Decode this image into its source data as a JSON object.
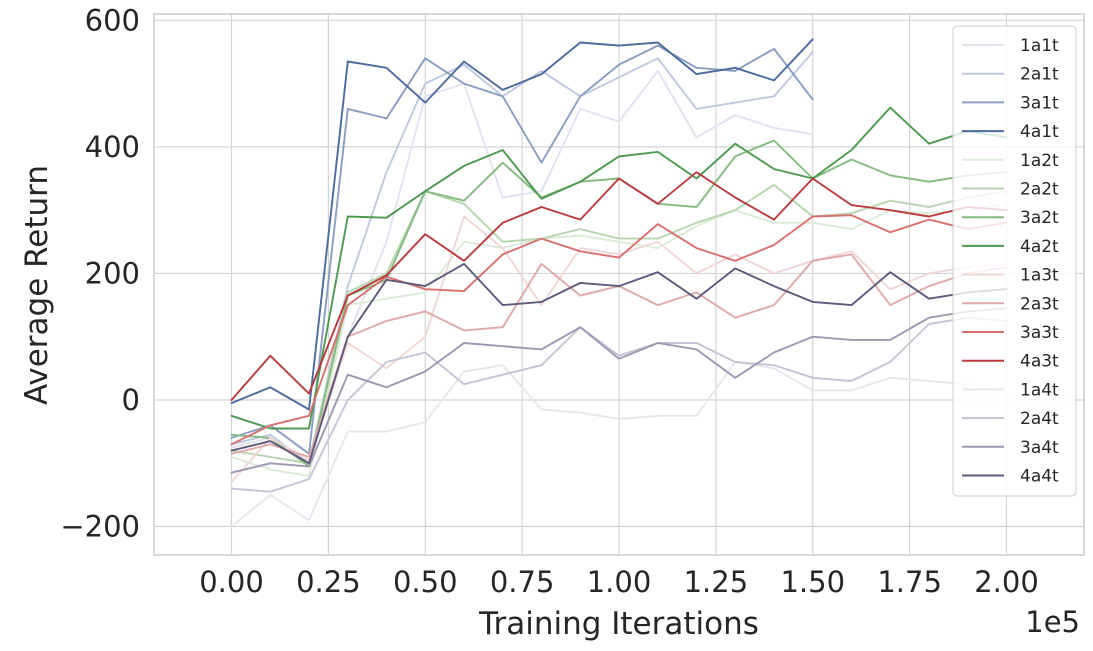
{
  "chart_data": {
    "type": "line",
    "title": "",
    "xlabel": "Training Iterations",
    "ylabel": "Average Return",
    "x_offset_text": "1e5",
    "xlim": [
      -0.2,
      2.2
    ],
    "ylim": [
      -245,
      610
    ],
    "x_ticks": [
      0.0,
      0.25,
      0.5,
      0.75,
      1.0,
      1.25,
      1.5,
      1.75,
      2.0
    ],
    "x_tick_labels": [
      "0.00",
      "0.25",
      "0.50",
      "0.75",
      "1.00",
      "1.25",
      "1.50",
      "1.75",
      "2.00"
    ],
    "y_ticks": [
      -200,
      0,
      200,
      400,
      600
    ],
    "y_tick_labels": [
      "−200",
      "0",
      "200",
      "400",
      "600"
    ],
    "grid": true,
    "legend_position": "upper-right",
    "series": [
      {
        "name": "1a1t",
        "color": "#dfe3ef",
        "x": [
          0,
          0.1,
          0.2,
          0.3,
          0.4,
          0.5,
          0.6,
          0.7,
          0.8,
          0.9,
          1.0,
          1.1,
          1.2,
          1.3,
          1.4,
          1.5
        ],
        "values": [
          -75,
          -60,
          -95,
          100,
          250,
          480,
          500,
          320,
          330,
          460,
          440,
          520,
          415,
          450,
          430,
          420
        ]
      },
      {
        "name": "2a1t",
        "color": "#bfc8de",
        "x": [
          0,
          0.1,
          0.2,
          0.3,
          0.4,
          0.5,
          0.6,
          0.7,
          0.8,
          0.9,
          1.0,
          1.1,
          1.2,
          1.3,
          1.4,
          1.5
        ],
        "values": [
          -70,
          -55,
          -100,
          180,
          360,
          500,
          530,
          480,
          520,
          480,
          510,
          540,
          460,
          470,
          480,
          550
        ]
      },
      {
        "name": "3a1t",
        "color": "#8b9dc3",
        "x": [
          0,
          0.1,
          0.2,
          0.3,
          0.4,
          0.5,
          0.6,
          0.7,
          0.8,
          0.9,
          1.0,
          1.1,
          1.2,
          1.3,
          1.4,
          1.5
        ],
        "values": [
          -60,
          -40,
          -85,
          460,
          445,
          540,
          500,
          480,
          375,
          480,
          530,
          560,
          525,
          520,
          555,
          475
        ]
      },
      {
        "name": "4a1t",
        "color": "#4c6a9e",
        "x": [
          0,
          0.1,
          0.2,
          0.3,
          0.4,
          0.5,
          0.6,
          0.7,
          0.8,
          0.9,
          1.0,
          1.1,
          1.2,
          1.3,
          1.4,
          1.5
        ],
        "values": [
          -5,
          20,
          -15,
          535,
          525,
          470,
          535,
          490,
          515,
          565,
          560,
          565,
          515,
          525,
          505,
          570
        ]
      },
      {
        "name": "1a2t",
        "color": "#dcebd8",
        "x": [
          0,
          0.1,
          0.2,
          0.3,
          0.4,
          0.5,
          0.6,
          0.7,
          0.8,
          0.9,
          1.0,
          1.1,
          1.2,
          1.3,
          1.4,
          1.5,
          1.6,
          1.7,
          1.8,
          1.9,
          2.0
        ],
        "values": [
          -90,
          -110,
          -120,
          150,
          160,
          170,
          250,
          240,
          255,
          260,
          250,
          240,
          275,
          300,
          280,
          280,
          270,
          300,
          295,
          300,
          310
        ]
      },
      {
        "name": "2a2t",
        "color": "#b5d6ae",
        "x": [
          0,
          0.1,
          0.2,
          0.3,
          0.4,
          0.5,
          0.6,
          0.7,
          0.8,
          0.9,
          1.0,
          1.1,
          1.2,
          1.3,
          1.4,
          1.5,
          1.6,
          1.7,
          1.8,
          1.9,
          2.0
        ],
        "values": [
          -80,
          -90,
          -100,
          170,
          200,
          330,
          310,
          250,
          255,
          270,
          255,
          255,
          280,
          300,
          340,
          290,
          295,
          315,
          305,
          320,
          330
        ]
      },
      {
        "name": "3a2t",
        "color": "#85bb80",
        "x": [
          0,
          0.1,
          0.2,
          0.3,
          0.4,
          0.5,
          0.6,
          0.7,
          0.8,
          0.9,
          1.0,
          1.1,
          1.2,
          1.3,
          1.4,
          1.5,
          1.6,
          1.7,
          1.8,
          1.9,
          2.0
        ],
        "values": [
          -55,
          -60,
          -105,
          165,
          190,
          330,
          315,
          375,
          320,
          345,
          350,
          310,
          305,
          385,
          410,
          350,
          380,
          355,
          345,
          355,
          360
        ]
      },
      {
        "name": "4a2t",
        "color": "#4c9a50",
        "x": [
          0,
          0.1,
          0.2,
          0.3,
          0.4,
          0.5,
          0.6,
          0.7,
          0.8,
          0.9,
          1.0,
          1.1,
          1.2,
          1.3,
          1.4,
          1.5,
          1.6,
          1.7,
          1.8,
          1.9,
          2.0
        ],
        "values": [
          -25,
          -45,
          -45,
          290,
          288,
          330,
          370,
          395,
          318,
          345,
          385,
          392,
          350,
          405,
          365,
          350,
          395,
          462,
          405,
          425,
          415
        ]
      },
      {
        "name": "1a3t",
        "color": "#f2d6d6",
        "x": [
          0,
          0.1,
          0.2,
          0.3,
          0.4,
          0.5,
          0.6,
          0.7,
          0.8,
          0.9,
          1.0,
          1.1,
          1.2,
          1.3,
          1.4,
          1.5,
          1.6,
          1.7,
          1.8,
          1.9,
          2.0
        ],
        "values": [
          -130,
          -60,
          -95,
          90,
          50,
          100,
          290,
          240,
          150,
          240,
          230,
          250,
          200,
          230,
          200,
          220,
          235,
          175,
          200,
          210,
          215
        ]
      },
      {
        "name": "2a3t",
        "color": "#e0a8a8",
        "x": [
          0,
          0.1,
          0.2,
          0.3,
          0.4,
          0.5,
          0.6,
          0.7,
          0.8,
          0.9,
          1.0,
          1.1,
          1.2,
          1.3,
          1.4,
          1.5,
          1.6,
          1.7,
          1.8,
          1.9,
          2.0
        ],
        "values": [
          -85,
          -70,
          -90,
          100,
          125,
          140,
          110,
          115,
          215,
          165,
          180,
          150,
          170,
          130,
          150,
          220,
          230,
          150,
          180,
          200,
          210
        ]
      },
      {
        "name": "3a3t",
        "color": "#d9706f",
        "x": [
          0,
          0.1,
          0.2,
          0.3,
          0.4,
          0.5,
          0.6,
          0.7,
          0.8,
          0.9,
          1.0,
          1.1,
          1.2,
          1.3,
          1.4,
          1.5,
          1.6,
          1.7,
          1.8,
          1.9,
          2.0
        ],
        "values": [
          -70,
          -40,
          -25,
          150,
          195,
          175,
          172,
          230,
          255,
          235,
          225,
          278,
          240,
          220,
          245,
          290,
          292,
          265,
          285,
          270,
          280
        ]
      },
      {
        "name": "4a3t",
        "color": "#bb3a3e",
        "x": [
          0,
          0.1,
          0.2,
          0.3,
          0.4,
          0.5,
          0.6,
          0.7,
          0.8,
          0.9,
          1.0,
          1.1,
          1.2,
          1.3,
          1.4,
          1.5,
          1.6,
          1.7,
          1.8,
          1.9,
          2.0
        ],
        "values": [
          0,
          70,
          10,
          165,
          197,
          262,
          220,
          280,
          305,
          285,
          350,
          310,
          360,
          320,
          285,
          350,
          308,
          300,
          290,
          305,
          300
        ]
      },
      {
        "name": "1a4t",
        "color": "#e8e5ee",
        "x": [
          0,
          0.1,
          0.2,
          0.3,
          0.4,
          0.5,
          0.6,
          0.7,
          0.8,
          0.9,
          1.0,
          1.1,
          1.2,
          1.3,
          1.4,
          1.5,
          1.6,
          1.7,
          1.8,
          1.9,
          2.0
        ],
        "values": [
          -200,
          -150,
          -190,
          -50,
          -50,
          -35,
          45,
          55,
          -15,
          -20,
          -30,
          -25,
          -25,
          60,
          50,
          15,
          15,
          35,
          30,
          25,
          20
        ]
      },
      {
        "name": "2a4t",
        "color": "#c7c3d6",
        "x": [
          0,
          0.1,
          0.2,
          0.3,
          0.4,
          0.5,
          0.6,
          0.7,
          0.8,
          0.9,
          1.0,
          1.1,
          1.2,
          1.3,
          1.4,
          1.5,
          1.6,
          1.7,
          1.8,
          1.9,
          2.0
        ],
        "values": [
          -140,
          -145,
          -125,
          0,
          60,
          75,
          25,
          40,
          55,
          115,
          70,
          90,
          90,
          60,
          55,
          35,
          30,
          60,
          120,
          130,
          125
        ]
      },
      {
        "name": "3a4t",
        "color": "#9c97b2",
        "x": [
          0,
          0.1,
          0.2,
          0.3,
          0.4,
          0.5,
          0.6,
          0.7,
          0.8,
          0.9,
          1.0,
          1.1,
          1.2,
          1.3,
          1.4,
          1.5,
          1.6,
          1.7,
          1.8,
          1.9,
          2.0
        ],
        "values": [
          -115,
          -100,
          -105,
          40,
          20,
          45,
          90,
          85,
          80,
          115,
          65,
          90,
          80,
          35,
          75,
          100,
          95,
          95,
          130,
          140,
          145
        ]
      },
      {
        "name": "4a4t",
        "color": "#5d5a7c",
        "x": [
          0,
          0.1,
          0.2,
          0.3,
          0.4,
          0.5,
          0.6,
          0.7,
          0.8,
          0.9,
          1.0,
          1.1,
          1.2,
          1.3,
          1.4,
          1.5,
          1.6,
          1.7,
          1.8,
          1.9,
          2.0
        ],
        "values": [
          -80,
          -65,
          -100,
          100,
          190,
          180,
          215,
          150,
          155,
          185,
          180,
          202,
          160,
          208,
          180,
          155,
          150,
          202,
          160,
          170,
          175
        ]
      }
    ]
  }
}
